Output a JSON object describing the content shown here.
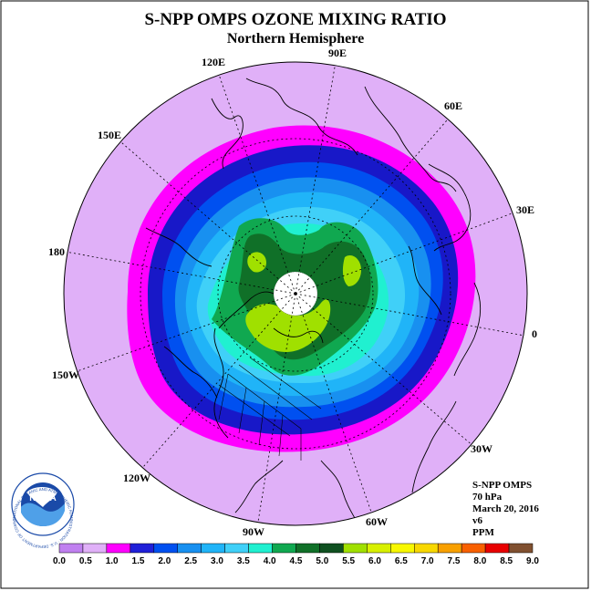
{
  "title": "S-NPP OMPS OZONE MIXING RATIO",
  "subtitle": "Northern Hemisphere",
  "longitude_labels": {
    "lon_90e": "90E",
    "lon_60e": "60E",
    "lon_30e": "30E",
    "lon_0": "0",
    "lon_30w": "30W",
    "lon_60w": "60W",
    "lon_90w": "90W",
    "lon_120w": "120W",
    "lon_150w": "150W",
    "lon_180": "180",
    "lon_150e": "150E",
    "lon_120e": "120E"
  },
  "info": {
    "instrument": "S-NPP OMPS",
    "level": "70 hPa",
    "date": "March 20, 2016",
    "version": "v6",
    "units": "PPM"
  },
  "colorbar": {
    "ticks": [
      "0.0",
      "0.5",
      "1.0",
      "1.5",
      "2.0",
      "2.5",
      "3.0",
      "3.5",
      "4.0",
      "4.5",
      "5.0",
      "5.5",
      "6.0",
      "6.5",
      "7.0",
      "7.5",
      "8.0",
      "8.5",
      "9.0"
    ],
    "colors": [
      "#c080f0",
      "#e0b0f8",
      "#ff00ff",
      "#2020d8",
      "#0050f0",
      "#1890f0",
      "#20b4f8",
      "#40d0f8",
      "#20f0d0",
      "#10a850",
      "#107028",
      "#0f5020",
      "#a0e000",
      "#d8f000",
      "#f8f800",
      "#f8d800",
      "#f8a000",
      "#f86000",
      "#e80000",
      "#805030"
    ]
  },
  "logo": {
    "text": "NOAA",
    "ring_text": "NATIONAL OCEANIC AND ATMOSPHERIC ADMINISTRATION · U.S. DEPARTMENT OF COMMERCE"
  }
}
